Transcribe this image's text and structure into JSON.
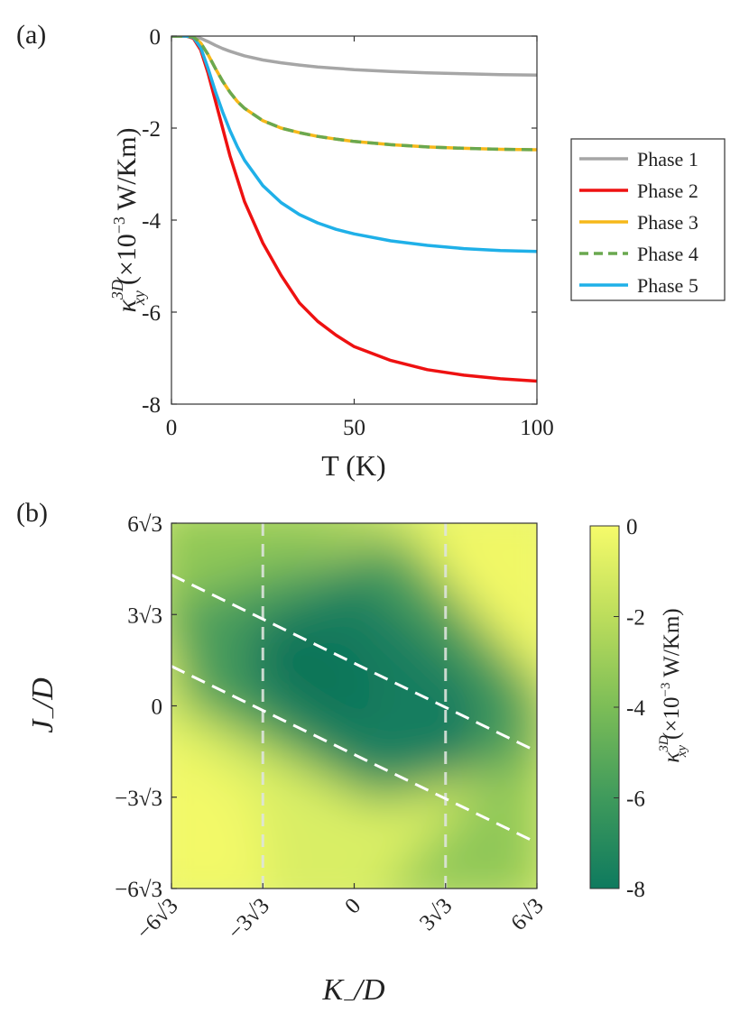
{
  "colors": {
    "phase1": "#a6a6a6",
    "phase2": "#ee1111",
    "phase3": "#f6b81a",
    "phase4": "#6aa84f",
    "phase5": "#1fb0e8",
    "cmap_low": "#0e7a5e",
    "cmap_high": "#f6fb6a"
  },
  "chart_data": [
    {
      "panel": "(a)",
      "type": "line",
      "xlabel": "T (K)",
      "ylabel": "κ",
      "ylabel_sup": "3D",
      "ylabel_sub": "xy",
      "ylabel_unit": "(×10",
      "ylabel_exp": "−3",
      "ylabel_unit_tail": " W/Km)",
      "xlim": [
        0,
        100
      ],
      "ylim": [
        -8,
        0
      ],
      "x_ticks": [
        0,
        50,
        100
      ],
      "x_tick_labels": [
        "0",
        "50",
        "100"
      ],
      "y_ticks": [
        0,
        -2,
        -4,
        -6,
        -8
      ],
      "y_tick_labels": [
        "0",
        "-2",
        "-4",
        "-6",
        "-8"
      ],
      "legend_position": "right",
      "x": [
        0,
        2,
        4,
        6,
        8,
        10,
        12,
        14,
        16,
        18,
        20,
        25,
        30,
        35,
        40,
        45,
        50,
        60,
        70,
        80,
        90,
        100
      ],
      "series": [
        {
          "name": "Phase 1",
          "style": "solid",
          "values": [
            0,
            0,
            0,
            -0.01,
            -0.05,
            -0.12,
            -0.2,
            -0.27,
            -0.33,
            -0.38,
            -0.43,
            -0.52,
            -0.58,
            -0.63,
            -0.67,
            -0.7,
            -0.73,
            -0.77,
            -0.8,
            -0.82,
            -0.84,
            -0.85
          ]
        },
        {
          "name": "Phase 2",
          "style": "solid",
          "values": [
            0,
            0,
            0,
            -0.05,
            -0.3,
            -0.8,
            -1.4,
            -2.0,
            -2.6,
            -3.1,
            -3.6,
            -4.5,
            -5.2,
            -5.8,
            -6.2,
            -6.5,
            -6.75,
            -7.05,
            -7.25,
            -7.37,
            -7.45,
            -7.5
          ]
        },
        {
          "name": "Phase 3",
          "style": "solid",
          "values": [
            0,
            0,
            0,
            -0.02,
            -0.15,
            -0.4,
            -0.7,
            -0.98,
            -1.22,
            -1.42,
            -1.57,
            -1.84,
            -2.0,
            -2.1,
            -2.18,
            -2.24,
            -2.29,
            -2.36,
            -2.41,
            -2.44,
            -2.46,
            -2.47
          ]
        },
        {
          "name": "Phase 4",
          "style": "dashed",
          "values": [
            0,
            0,
            0,
            -0.02,
            -0.15,
            -0.4,
            -0.7,
            -0.98,
            -1.22,
            -1.42,
            -1.57,
            -1.84,
            -2.0,
            -2.1,
            -2.18,
            -2.24,
            -2.29,
            -2.36,
            -2.41,
            -2.44,
            -2.46,
            -2.47
          ]
        },
        {
          "name": "Phase 5",
          "style": "solid",
          "values": [
            0,
            0,
            0,
            -0.03,
            -0.25,
            -0.7,
            -1.2,
            -1.65,
            -2.05,
            -2.4,
            -2.7,
            -3.25,
            -3.62,
            -3.88,
            -4.06,
            -4.2,
            -4.3,
            -4.45,
            -4.55,
            -4.62,
            -4.66,
            -4.68
          ]
        }
      ]
    },
    {
      "panel": "(b)",
      "type": "heatmap",
      "xlabel_main": "K",
      "xlabel_sub": "−",
      "xlabel_tail": "/D",
      "ylabel_main": "J",
      "ylabel_sub": "−",
      "ylabel_tail": "/D",
      "xlim": [
        -6,
        6
      ],
      "ylim": [
        -6,
        6
      ],
      "x_ticks": [
        -6,
        -3,
        0,
        3,
        6
      ],
      "x_tick_labels": [
        {
          "coef": "−6",
          "root": true
        },
        {
          "coef": "−3",
          "root": true
        },
        {
          "coef": "0",
          "root": false
        },
        {
          "coef": "3",
          "root": true
        },
        {
          "coef": "6",
          "root": true
        }
      ],
      "y_ticks": [
        6,
        3,
        0,
        -3,
        -6
      ],
      "y_tick_labels": [
        {
          "coef": "6",
          "root": true
        },
        {
          "coef": "3",
          "root": true
        },
        {
          "coef": "0",
          "root": false
        },
        {
          "coef": "−3",
          "root": true
        },
        {
          "coef": "−6",
          "root": true
        }
      ],
      "root_symbol": "√3",
      "tick_unit": "√3",
      "boundaries": {
        "vertical_x": [
          -3,
          3
        ],
        "diagonal_lines": [
          {
            "x": [
              -6,
              6
            ],
            "y": [
              4.3,
              -1.5
            ]
          },
          {
            "x": [
              -6,
              6
            ],
            "y": [
              1.3,
              -4.5
            ]
          }
        ]
      },
      "colorbar": {
        "range": [
          -8,
          0
        ],
        "ticks": [
          0,
          -2,
          -4,
          -6,
          -8
        ],
        "tick_labels": [
          "0",
          "-2",
          "-4",
          "-6",
          "-8"
        ],
        "label_main": "κ",
        "label_sup": "3D",
        "label_sub": "xy",
        "label_unit": "(×10",
        "label_exp": "−3",
        "label_unit_tail": " W/Km)"
      }
    }
  ]
}
